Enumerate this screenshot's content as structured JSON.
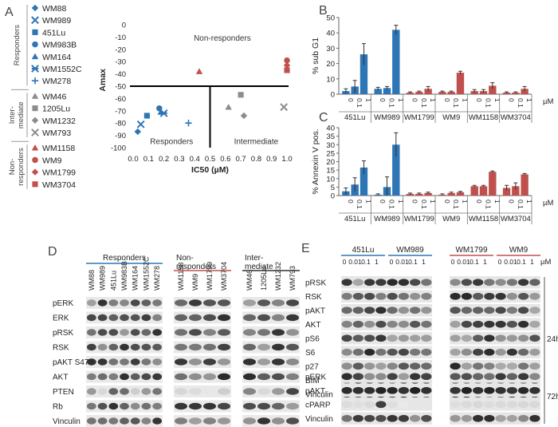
{
  "panels": {
    "a": "A",
    "b": "B",
    "c": "C",
    "d": "D",
    "e": "E"
  },
  "colors": {
    "blue": "#2e75b6",
    "gray": "#8c8c8c",
    "red": "#c0504d",
    "line_blue": "#2e75b6",
    "line_red": "#c0504d",
    "line_dark": "#333333"
  },
  "legend_a": {
    "groups": [
      {
        "label": "Responders",
        "items": [
          {
            "name": "WM88",
            "marker": "diamond",
            "color": "blue"
          },
          {
            "name": "WM989",
            "marker": "x",
            "color": "blue"
          },
          {
            "name": "451Lu",
            "marker": "square",
            "color": "blue"
          },
          {
            "name": "WM983B",
            "marker": "circle",
            "color": "blue"
          },
          {
            "name": "WM164",
            "marker": "triangle",
            "color": "blue"
          },
          {
            "name": "WM1552C",
            "marker": "star",
            "color": "blue"
          },
          {
            "name": "WM278",
            "marker": "plus",
            "color": "blue"
          }
        ]
      },
      {
        "label": "Inter- mediate",
        "items": [
          {
            "name": "WM46",
            "marker": "triangle",
            "color": "gray"
          },
          {
            "name": "1205Lu",
            "marker": "square",
            "color": "gray"
          },
          {
            "name": "WM1232",
            "marker": "diamond",
            "color": "gray"
          },
          {
            "name": "WM793",
            "marker": "x",
            "color": "gray"
          }
        ]
      },
      {
        "label": "Non- responders",
        "items": [
          {
            "name": "WM1158",
            "marker": "triangle",
            "color": "red"
          },
          {
            "name": "WM9",
            "marker": "circle",
            "color": "red"
          },
          {
            "name": "WM1799",
            "marker": "diamond",
            "color": "red"
          },
          {
            "name": "WM3704",
            "marker": "square",
            "color": "red"
          }
        ]
      }
    ]
  },
  "chart_data": [
    {
      "id": "A",
      "type": "scatter",
      "xlabel": "IC50 (µM)",
      "ylabel": "Amax",
      "xlim": [
        0,
        1
      ],
      "ylim": [
        -100,
        0
      ],
      "xticks": [
        "0.0",
        "0.1",
        "0.2",
        "0.3",
        "0.4",
        "0.5",
        "0.6",
        "0.7",
        "0.8",
        "0.9",
        "1.0"
      ],
      "yticks": [
        "0",
        "-10",
        "-20",
        "-30",
        "-40",
        "-50",
        "-60",
        "-70",
        "-80",
        "-90",
        "-100"
      ],
      "divider": {
        "x": 0.5,
        "y": -50
      },
      "annotations": {
        "top": "Non-responders",
        "bottom_left": "Responders",
        "bottom_right": "Intermediate"
      },
      "points": [
        {
          "name": "WM88",
          "x": 0.03,
          "y": -87,
          "marker": "diamond",
          "color": "blue"
        },
        {
          "name": "WM989",
          "x": 0.05,
          "y": -81,
          "marker": "x",
          "color": "blue"
        },
        {
          "name": "451Lu",
          "x": 0.09,
          "y": -74,
          "marker": "square",
          "color": "blue"
        },
        {
          "name": "WM983B",
          "x": 0.17,
          "y": -68,
          "marker": "circle",
          "color": "blue"
        },
        {
          "name": "WM164",
          "x": 0.18,
          "y": -71,
          "marker": "triangle",
          "color": "blue"
        },
        {
          "name": "WM1552C",
          "x": 0.2,
          "y": -72,
          "marker": "star",
          "color": "blue"
        },
        {
          "name": "WM278",
          "x": 0.36,
          "y": -80,
          "marker": "plus",
          "color": "blue"
        },
        {
          "name": "WM46",
          "x": 0.62,
          "y": -67,
          "marker": "triangle",
          "color": "gray"
        },
        {
          "name": "1205Lu",
          "x": 0.7,
          "y": -57,
          "marker": "square",
          "color": "gray"
        },
        {
          "name": "WM1232",
          "x": 0.72,
          "y": -74,
          "marker": "diamond",
          "color": "gray"
        },
        {
          "name": "WM793",
          "x": 0.98,
          "y": -67,
          "marker": "x",
          "color": "gray"
        },
        {
          "name": "WM1158",
          "x": 0.43,
          "y": -38,
          "marker": "triangle",
          "color": "red"
        },
        {
          "name": "WM9",
          "x": 1.0,
          "y": -29,
          "marker": "circle",
          "color": "red"
        },
        {
          "name": "WM1799",
          "x": 1.0,
          "y": -33,
          "marker": "diamond",
          "color": "red"
        },
        {
          "name": "WM3704",
          "x": 1.0,
          "y": -37,
          "marker": "square",
          "color": "red"
        }
      ]
    },
    {
      "id": "B",
      "type": "bar",
      "ylabel": "% sub G1",
      "ylim": [
        0,
        50
      ],
      "yticks": [
        "0",
        "10",
        "20",
        "30",
        "40",
        "50"
      ],
      "unit": "µM",
      "cell_lines": [
        "451Lu",
        "WM989",
        "WM1799",
        "WM9",
        "WM1158",
        "WM3704"
      ],
      "doses": [
        "0",
        "0.1",
        "1"
      ],
      "series": [
        {
          "cell_line": "451Lu",
          "color": "blue",
          "values": [
            2,
            5,
            26
          ],
          "errors": [
            1.5,
            4,
            7
          ]
        },
        {
          "cell_line": "WM989",
          "color": "blue",
          "values": [
            3.5,
            4,
            42
          ],
          "errors": [
            1,
            1,
            3
          ]
        },
        {
          "cell_line": "WM1799",
          "color": "red",
          "values": [
            1,
            1.5,
            3.5
          ],
          "errors": [
            0.5,
            0.5,
            1.5
          ]
        },
        {
          "cell_line": "WM9",
          "color": "red",
          "values": [
            1.5,
            1.5,
            14
          ],
          "errors": [
            0.5,
            0.5,
            1
          ]
        },
        {
          "cell_line": "WM1158",
          "color": "red",
          "values": [
            2,
            2,
            5.5
          ],
          "errors": [
            1,
            1,
            2
          ]
        },
        {
          "cell_line": "WM3704",
          "color": "red",
          "values": [
            1,
            1,
            3.5
          ],
          "errors": [
            0.5,
            0.5,
            1.5
          ]
        }
      ]
    },
    {
      "id": "C",
      "type": "bar",
      "ylabel": "% Annexin V pos.",
      "ylim": [
        0,
        40
      ],
      "yticks": [
        "0",
        "5",
        "10",
        "15",
        "20",
        "25",
        "30",
        "35",
        "40"
      ],
      "unit": "µM",
      "cell_lines": [
        "451Lu",
        "WM989",
        "WM1799",
        "WM9",
        "WM1158",
        "WM3704"
      ],
      "doses": [
        "0",
        "0.1",
        "1"
      ],
      "series": [
        {
          "cell_line": "451Lu",
          "color": "blue",
          "values": [
            2.5,
            6.5,
            16.5
          ],
          "errors": [
            2,
            4,
            4
          ]
        },
        {
          "cell_line": "WM989",
          "color": "blue",
          "values": [
            0.5,
            5,
            30
          ],
          "errors": [
            0.5,
            6,
            7
          ]
        },
        {
          "cell_line": "WM1799",
          "color": "red",
          "values": [
            1,
            1,
            1.5
          ],
          "errors": [
            0.5,
            0.5,
            0.5
          ]
        },
        {
          "cell_line": "WM9",
          "color": "red",
          "values": [
            0.5,
            1.5,
            2
          ],
          "errors": [
            0.5,
            0.5,
            0.5
          ]
        },
        {
          "cell_line": "WM1158",
          "color": "red",
          "values": [
            5.5,
            5.5,
            14
          ],
          "errors": [
            0.5,
            0.5,
            0.5
          ]
        },
        {
          "cell_line": "WM3704",
          "color": "red",
          "values": [
            4.5,
            5.5,
            12.5
          ],
          "errors": [
            1.5,
            2,
            0.5
          ]
        }
      ]
    }
  ],
  "panel_d": {
    "groups": [
      {
        "label": "Responders",
        "line_color": "line_blue",
        "lanes": [
          "WM88",
          "WM989",
          "451Lu",
          "WM983B",
          "WM164",
          "WM1552C",
          "WM278"
        ]
      },
      {
        "label": "Non- responders",
        "line_color": "line_red",
        "lanes": [
          "WM1158",
          "WM9",
          "WM1799",
          "WM3704"
        ]
      },
      {
        "label": "Inter- mediate",
        "line_color": "line_dark",
        "lanes": [
          "WM46",
          "1205Lu",
          "WM1232",
          "WM793"
        ]
      }
    ],
    "rows": [
      "pERK",
      "ERK",
      "pRSK",
      "RSK",
      "pAKT S473",
      "AKT",
      "PTEN",
      "Rb",
      "Vinculin"
    ]
  },
  "panel_e": {
    "unit": "µM",
    "groups": [
      {
        "label": "451Lu",
        "line_color": "line_blue"
      },
      {
        "label": "WM989",
        "line_color": "line_blue"
      },
      {
        "label": "WM1799",
        "line_color": "line_red"
      },
      {
        "label": "WM9",
        "line_color": "line_red"
      }
    ],
    "doses": [
      "0",
      "0.01",
      "0.1",
      "1"
    ],
    "time_24h": "24h",
    "time_72h": "72h",
    "rows_24h": [
      "pRSK",
      "RSK",
      "pAKT",
      "AKT",
      "pS6",
      "S6",
      "p27",
      "BIM",
      "Vinculin"
    ],
    "rows_72h": [
      "pERK",
      "pAKT",
      "cPARP",
      "Vinculin"
    ]
  }
}
